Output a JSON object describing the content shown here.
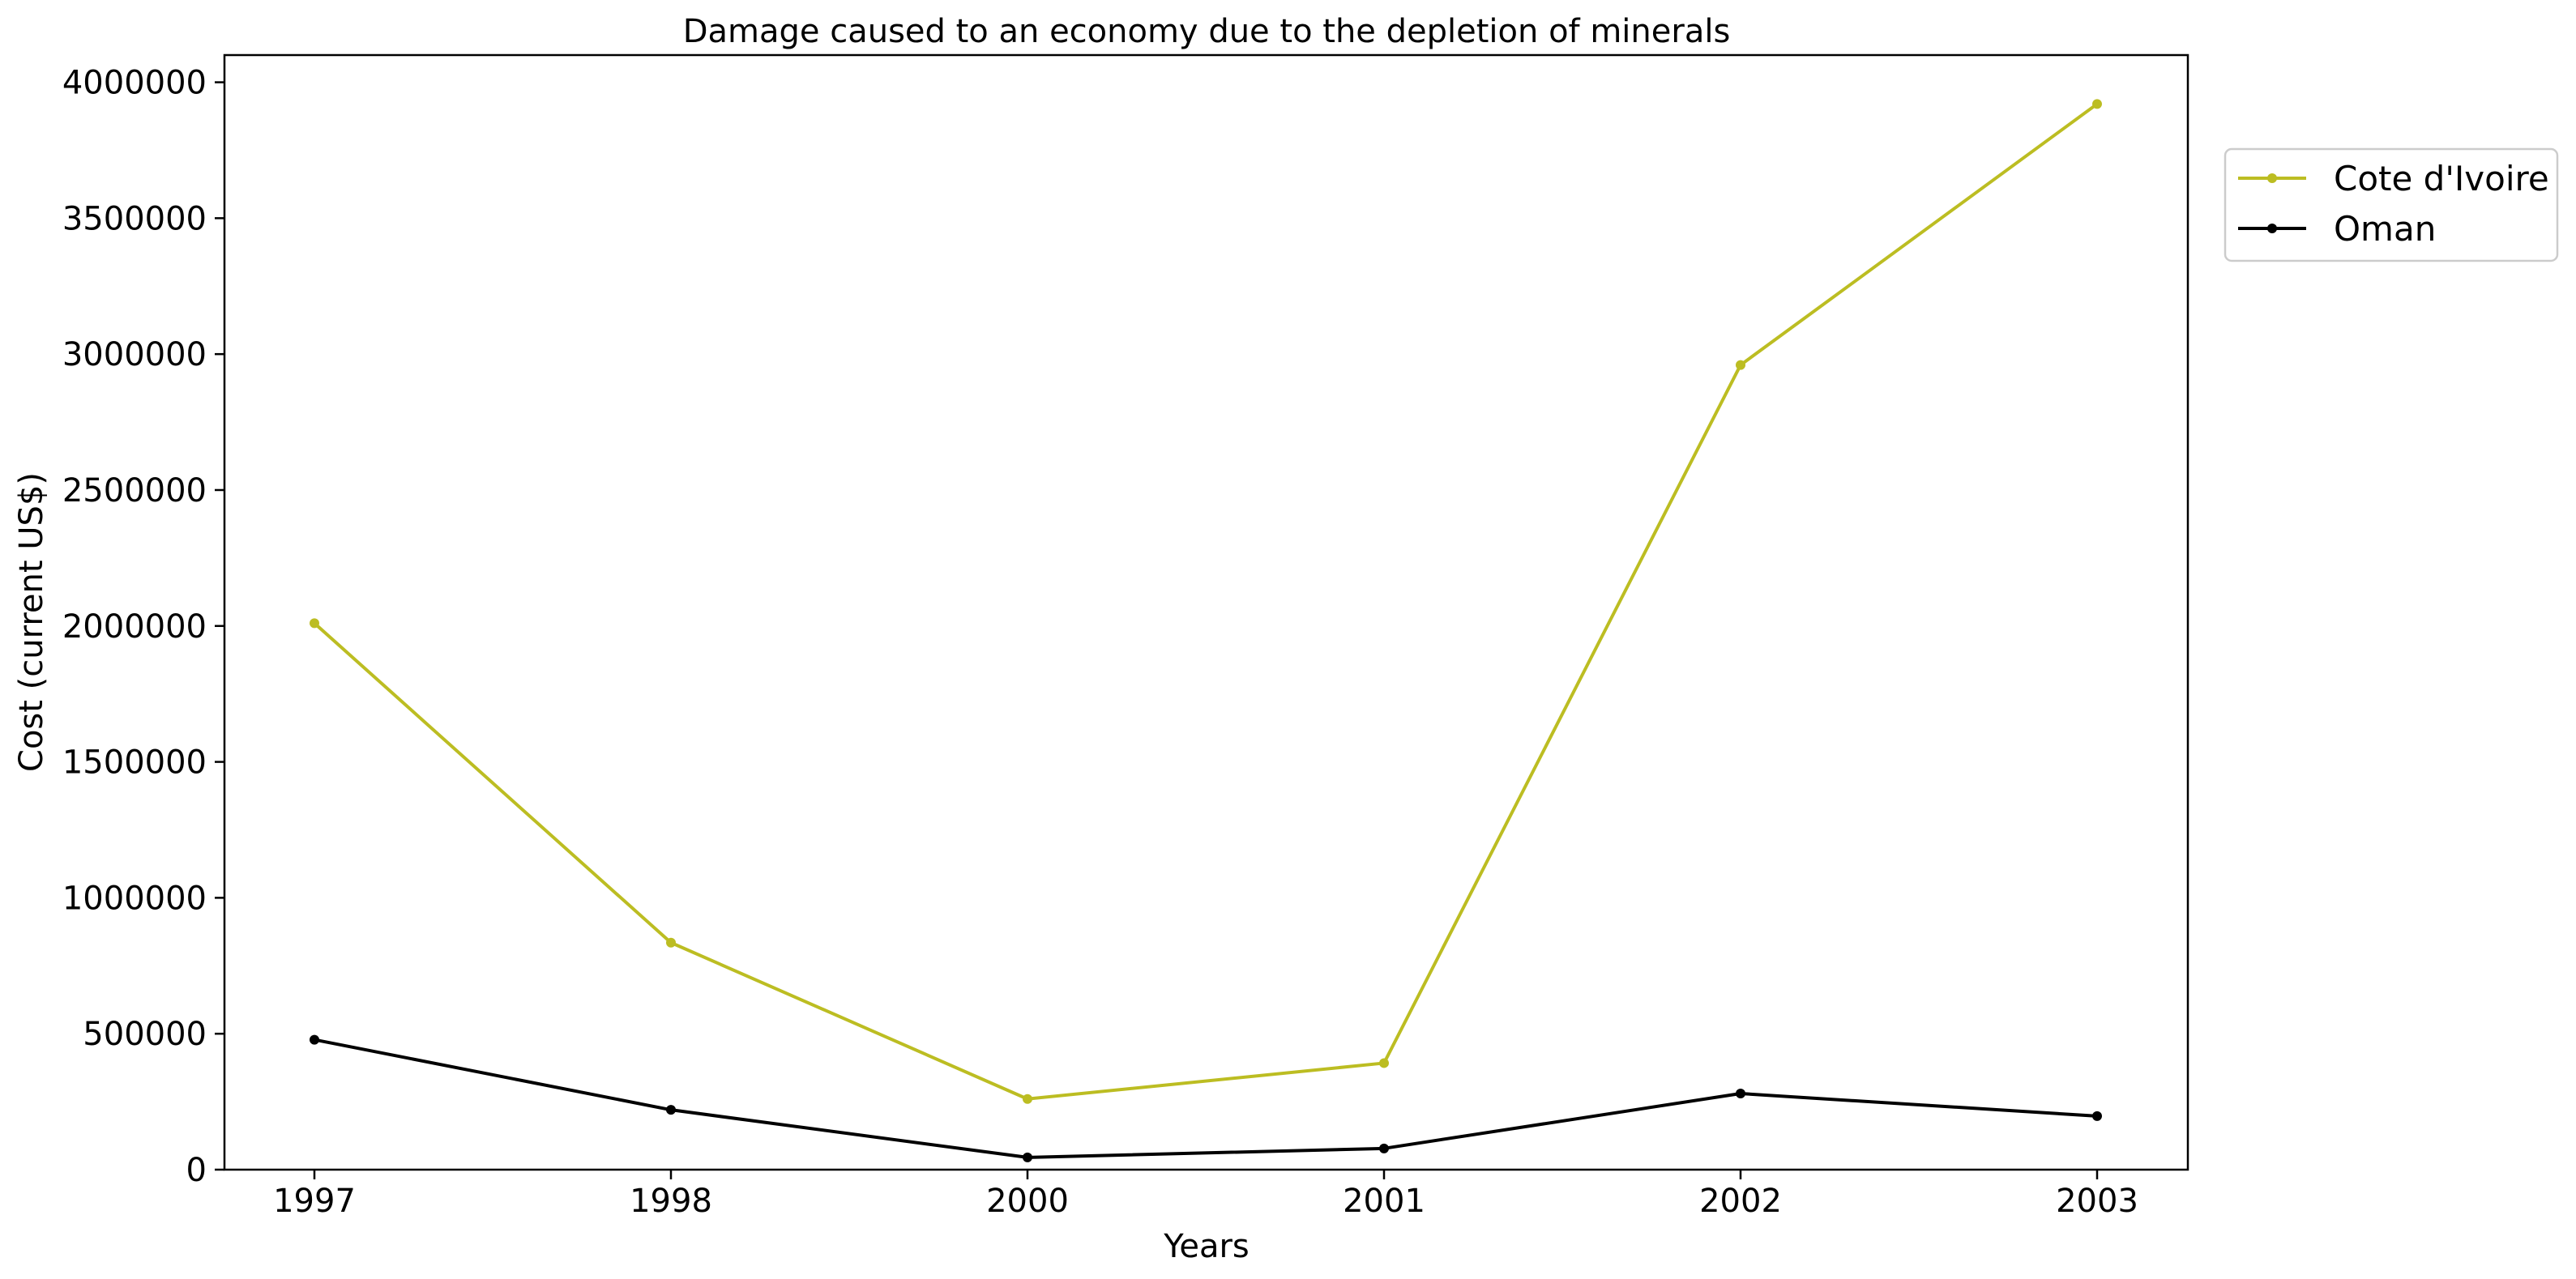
{
  "chart_data": {
    "type": "line",
    "title": "Damage caused to an economy due to the depletion of minerals",
    "xlabel": "Years",
    "ylabel": "Cost (current US$)",
    "categories": [
      "1997",
      "1998",
      "2000",
      "2001",
      "2002",
      "2003"
    ],
    "ylim": [
      0,
      4100000
    ],
    "yticks": [
      0,
      500000,
      1000000,
      1500000,
      2000000,
      2500000,
      3000000,
      3500000,
      4000000
    ],
    "ytick_labels": [
      "0",
      "500000",
      "1000000",
      "1500000",
      "2000000",
      "2500000",
      "3000000",
      "3500000",
      "4000000"
    ],
    "grid": false,
    "legend_position": "outside-top-right",
    "series": [
      {
        "name": "Cote d'Ivoire",
        "color": "#bcbd22",
        "values": [
          2010000,
          835000,
          260000,
          392000,
          2960000,
          3920000
        ]
      },
      {
        "name": "Oman",
        "color": "#000000",
        "values": [
          478000,
          220000,
          45000,
          78000,
          280000,
          197000
        ]
      }
    ]
  }
}
